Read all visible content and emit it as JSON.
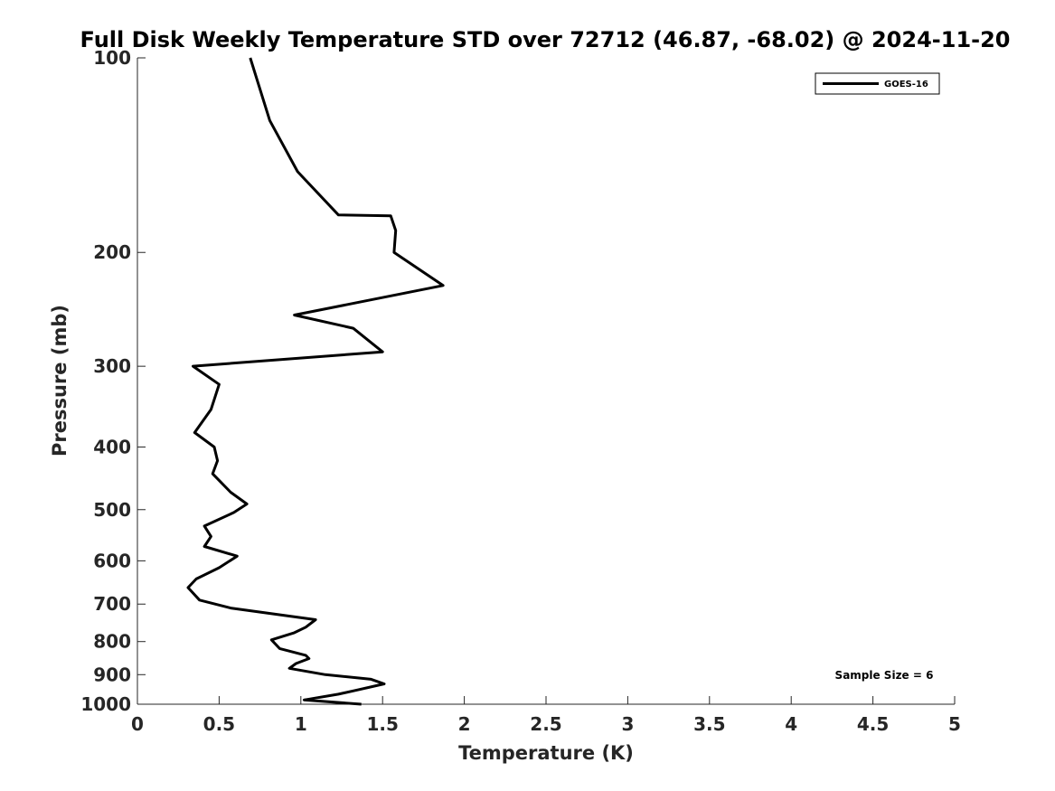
{
  "chart_data": {
    "type": "line",
    "title": "Full Disk Weekly Temperature STD over 72712 (46.87, -68.02) @ 2024-11-20",
    "xlabel": "Temperature (K)",
    "ylabel": "Pressure (mb)",
    "xlim": [
      0,
      5
    ],
    "ylim": [
      100,
      1000
    ],
    "y_scale": "log",
    "y_reversed": true,
    "x_ticks": [
      0,
      0.5,
      1,
      1.5,
      2,
      2.5,
      3,
      3.5,
      4,
      4.5,
      5
    ],
    "x_tick_labels": [
      "0",
      "0.5",
      "1",
      "1.5",
      "2",
      "2.5",
      "3",
      "3.5",
      "4",
      "4.5",
      "5"
    ],
    "y_ticks": [
      100,
      200,
      300,
      400,
      500,
      600,
      700,
      800,
      900,
      1000
    ],
    "y_tick_labels": [
      "100",
      "200",
      "300",
      "400",
      "500",
      "600",
      "700",
      "800",
      "900",
      "1000"
    ],
    "grid": false,
    "legend_position": "top-right",
    "annotation": "Sample Size = 6",
    "series": [
      {
        "name": "GOES-16",
        "color": "#000000",
        "points": [
          [
            0.69,
            100
          ],
          [
            0.81,
            125
          ],
          [
            0.98,
            150
          ],
          [
            1.23,
            175
          ],
          [
            1.55,
            175.5
          ],
          [
            1.58,
            185
          ],
          [
            1.57,
            200
          ],
          [
            1.87,
            225
          ],
          [
            0.96,
            250
          ],
          [
            1.32,
            262
          ],
          [
            1.5,
            285
          ],
          [
            0.34,
            300
          ],
          [
            0.5,
            320
          ],
          [
            0.45,
            350
          ],
          [
            0.35,
            380
          ],
          [
            0.47,
            400
          ],
          [
            0.49,
            420
          ],
          [
            0.46,
            440
          ],
          [
            0.57,
            470
          ],
          [
            0.67,
            490
          ],
          [
            0.59,
            505
          ],
          [
            0.41,
            530
          ],
          [
            0.45,
            550
          ],
          [
            0.41,
            570
          ],
          [
            0.61,
            590
          ],
          [
            0.5,
            615
          ],
          [
            0.36,
            640
          ],
          [
            0.31,
            660
          ],
          [
            0.38,
            690
          ],
          [
            0.57,
            710
          ],
          [
            1.09,
            740
          ],
          [
            1.03,
            760
          ],
          [
            0.96,
            775
          ],
          [
            0.82,
            795
          ],
          [
            0.87,
            820
          ],
          [
            1.03,
            840
          ],
          [
            1.05,
            850
          ],
          [
            0.97,
            865
          ],
          [
            0.93,
            880
          ],
          [
            1.15,
            900
          ],
          [
            1.43,
            915
          ],
          [
            1.51,
            930
          ],
          [
            1.35,
            950
          ],
          [
            1.23,
            965
          ],
          [
            1.02,
            985
          ],
          [
            1.37,
            1000
          ]
        ]
      }
    ]
  }
}
